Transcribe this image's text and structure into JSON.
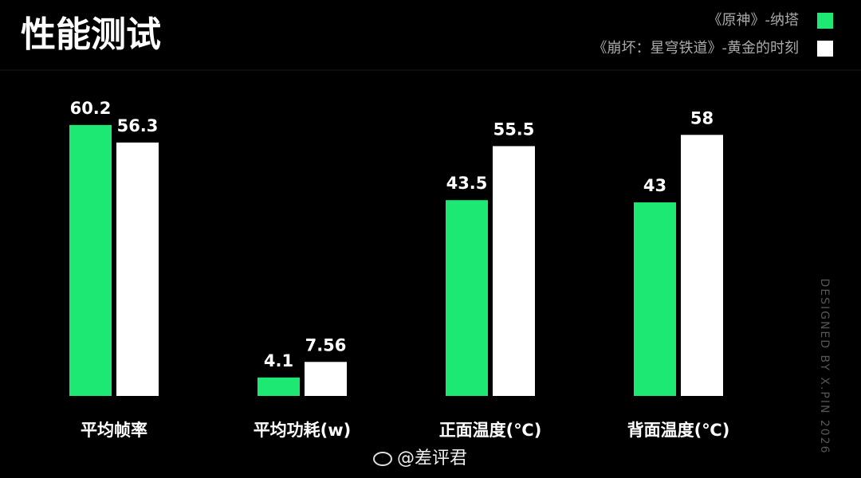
{
  "chart_data": {
    "type": "bar",
    "title": "性能测试",
    "categories": [
      "平均帧率",
      "平均功耗(w)",
      "正面温度(℃)",
      "背面温度(℃)"
    ],
    "series": [
      {
        "name": "《原神》-纳塔",
        "color": "#1de874",
        "values": [
          60.2,
          4.1,
          43.5,
          43
        ]
      },
      {
        "name": "《崩坏：星穹铁道》-黄金的时刻",
        "color": "#ffffff",
        "values": [
          56.3,
          7.56,
          55.5,
          58
        ]
      }
    ],
    "ylim": [
      0,
      70
    ],
    "legend": "top-right",
    "annotations": [
      "DESIGNED BY X.PIN 2026",
      "@差评君"
    ]
  }
}
